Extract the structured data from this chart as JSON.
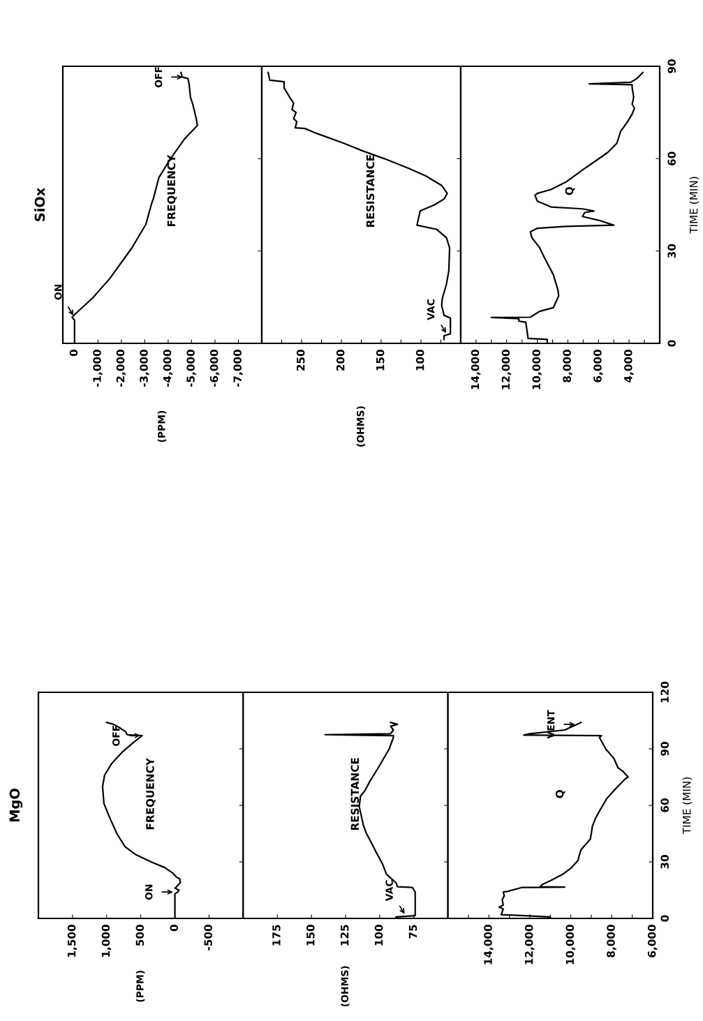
{
  "chart_data": [
    {
      "type": "line",
      "title": "MgO",
      "ylim": [
        0,
        120
      ],
      "yticks": [
        0,
        30,
        60,
        90,
        120
      ],
      "xlim": [
        2000,
        -1000
      ],
      "xticks": [
        {
          "value": 1500,
          "label": "1,500"
        },
        {
          "value": 1000,
          "label": "1,000"
        },
        500,
        0,
        -500
      ],
      "tick_labels": "x",
      "grid": false,
      "annotations": [
        "FREQUENCY",
        "(PPM)",
        {
          "text": "ON",
          "y": 14,
          "x": 0
        },
        {
          "text": "OFF",
          "y": 97,
          "x": 480
        }
      ],
      "series": [
        {
          "color": "#000000",
          "values": [
            0,
            13,
            14,
            15,
            16,
            17,
            19,
            21,
            22,
            24,
            27,
            30,
            34,
            38,
            45,
            53,
            61,
            70,
            76,
            82,
            88,
            93,
            97,
            97.5,
            99,
            101,
            103,
            104
          ],
          "x": [
            0,
            0,
            -40,
            -60,
            0,
            -30,
            -80,
            -70,
            -20,
            30,
            150,
            350,
            580,
            730,
            850,
            950,
            1040,
            1060,
            1030,
            930,
            780,
            620,
            480,
            700,
            720,
            800,
            900,
            1000
          ]
        }
      ]
    },
    {
      "type": "line",
      "ylim": [
        0,
        120
      ],
      "yticks": [
        0,
        30,
        60,
        90,
        120
      ],
      "xlim": [
        200,
        50
      ],
      "xticks": [
        175,
        150,
        125,
        100,
        75
      ],
      "tick_labels": "x",
      "grid": false,
      "annotations": [
        "RESISTANCE",
        "(OHMS)",
        {
          "text": "VAC",
          "y": 1.5,
          "x": 81
        }
      ],
      "series": [
        {
          "color": "#000000",
          "values": [
            0,
            0.8,
            1.4,
            14,
            16.4,
            16.8,
            18.9,
            23.4,
            29,
            35.7,
            41.4,
            45.5,
            49.6,
            59.4,
            65,
            67.6,
            73,
            80,
            85,
            90,
            96,
            97,
            97.5,
            98,
            100,
            102,
            103,
            104
          ],
          "x": [
            88,
            88,
            74,
            74,
            76,
            87,
            88,
            95,
            98,
            103,
            107,
            110,
            112,
            115,
            114,
            111,
            107,
            101,
            97,
            93,
            90,
            90,
            140,
            92,
            90,
            92,
            87,
            92
          ]
        }
      ]
    },
    {
      "type": "line",
      "ylabel": "TIME (MIN)",
      "ylim": [
        0,
        120
      ],
      "yticks": [
        0,
        30,
        60,
        90,
        120
      ],
      "xlim": [
        16000,
        6000
      ],
      "xticks": [
        {
          "value": 15000,
          "label": null
        },
        {
          "value": 14000,
          "label": "14,000"
        },
        {
          "value": 13000,
          "label": null
        },
        {
          "value": 12000,
          "label": "12,000"
        },
        {
          "value": 11000,
          "label": null
        },
        {
          "value": 10000,
          "label": "10,000"
        },
        {
          "value": 9000,
          "label": null
        },
        {
          "value": 8000,
          "label": "8,000"
        },
        {
          "value": 7000,
          "label": null
        },
        {
          "value": 6000,
          "label": "6,000"
        }
      ],
      "grid": false,
      "annotations": [
        "Q",
        {
          "text": "VENT",
          "y": 103,
          "x": 9700
        }
      ],
      "series": [
        {
          "color": "#000000",
          "values": [
            0,
            0.8,
            2,
            5,
            6,
            7,
            10,
            12,
            14,
            14.3,
            16.4,
            16.6,
            16.8,
            18,
            20,
            23.4,
            26.6,
            30.7,
            33,
            36.5,
            39,
            42,
            45,
            48.8,
            53,
            57,
            63.5,
            69,
            74,
            75,
            78,
            80,
            85,
            90,
            96,
            97,
            97.3,
            98,
            100,
            103,
            104
          ],
          "x": [
            11000,
            11000,
            13400,
            13300,
            13500,
            13300,
            13350,
            13250,
            13300,
            13100,
            12400,
            10300,
            11500,
            11400,
            11000,
            10400,
            10000,
            9650,
            9600,
            9500,
            9300,
            9050,
            9000,
            8950,
            8800,
            8600,
            8250,
            7800,
            7350,
            7200,
            7450,
            7700,
            7900,
            8300,
            8600,
            8500,
            12300,
            12000,
            10300,
            9700,
            9500
          ]
        }
      ]
    },
    {
      "type": "line",
      "title": "SiOx",
      "ylim": [
        0,
        90
      ],
      "yticks": [
        0,
        30,
        60,
        90
      ],
      "xlim": [
        500,
        -8000
      ],
      "xticks": [
        0,
        {
          "value": -1000,
          "label": "-1,000"
        },
        {
          "value": -2000,
          "label": "-2,000"
        },
        {
          "value": -3000,
          "label": "-3,000"
        },
        {
          "value": -4000,
          "label": "-4,000"
        },
        {
          "value": -5000,
          "label": "-5,000"
        },
        {
          "value": -6000,
          "label": "-6,000"
        },
        {
          "value": -7000,
          "label": "-7,000"
        }
      ],
      "tick_labels": "x",
      "grid": false,
      "annotations": [
        "FREQUENCY",
        "(PPM)",
        {
          "text": "ON",
          "y": 8.5,
          "x": 0
        },
        {
          "text": "OFF",
          "y": 86.5,
          "x": -4700
        }
      ],
      "series": [
        {
          "color": "#000000",
          "values": [
            0,
            7.5,
            8.5,
            9.7,
            14.8,
            21,
            31,
            38.7,
            45.6,
            47,
            53.8,
            60,
            66.4,
            70.8,
            73,
            77.7,
            80,
            84,
            86,
            86.5,
            88
          ],
          "x": [
            0,
            0,
            100,
            -50,
            -780,
            -1500,
            -2450,
            -3050,
            -3300,
            -3370,
            -3600,
            -4100,
            -4700,
            -5250,
            -5200,
            -5050,
            -4950,
            -4900,
            -4850,
            -4600,
            -4550
          ]
        }
      ]
    },
    {
      "type": "line",
      "ylim": [
        0,
        90
      ],
      "yticks": [
        0,
        30,
        60,
        90
      ],
      "xlim": [
        300,
        50
      ],
      "xticks": [
        {
          "value": 275,
          "label": null
        },
        250,
        {
          "value": 225,
          "label": null
        },
        200,
        {
          "value": 175,
          "label": null
        },
        150,
        {
          "value": 125,
          "label": null
        },
        100,
        {
          "value": 75,
          "label": null
        }
      ],
      "tick_labels": "x",
      "grid": false,
      "annotations": [
        "RESISTANCE",
        "(OHMS)",
        {
          "text": "VAC",
          "y": 2.8,
          "x": 67
        }
      ],
      "series": [
        {
          "color": "#000000",
          "values": [
            1.3,
            2.5,
            3.1,
            8.2,
            9.1,
            12.3,
            14.8,
            19.2,
            23.6,
            31,
            34.3,
            37,
            38.4,
            43,
            45,
            46.9,
            48.7,
            51.3,
            54.4,
            57,
            60,
            62.6,
            65,
            68.2,
            69.8,
            70,
            72,
            73,
            75,
            76,
            78,
            80,
            83,
            85,
            85.5,
            88
          ],
          "x": [
            71,
            71,
            63,
            63,
            71,
            74,
            73,
            68,
            65,
            64,
            68,
            80,
            105,
            101,
            83,
            71,
            67,
            74,
            94,
            117,
            146,
            174,
            197,
            231,
            246,
            258,
            256,
            260,
            257,
            262,
            260,
            265,
            272,
            272,
            290,
            292
          ]
        }
      ]
    },
    {
      "type": "line",
      "ylabel": "TIME (MIN)",
      "ylim": [
        0,
        90
      ],
      "yticks": [
        0,
        30,
        60,
        90
      ],
      "xlim": [
        15000,
        2000
      ],
      "xticks": [
        {
          "value": 14000,
          "label": "14,000"
        },
        {
          "value": 13000,
          "label": null
        },
        {
          "value": 12000,
          "label": "12,000"
        },
        {
          "value": 11000,
          "label": null
        },
        {
          "value": 10000,
          "label": "10,000"
        },
        {
          "value": 9000,
          "label": null
        },
        {
          "value": 8000,
          "label": "8,000"
        },
        {
          "value": 7000,
          "label": null
        },
        {
          "value": 6000,
          "label": "6,000"
        },
        {
          "value": 5000,
          "label": null
        },
        {
          "value": 4000,
          "label": "4,000"
        },
        {
          "value": 3000,
          "label": null
        }
      ],
      "grid": false,
      "annotations": [
        "Q"
      ],
      "series": [
        {
          "color": "#000000",
          "values": [
            0,
            1.3,
            1.6,
            6.9,
            7.2,
            8,
            8.2,
            8.4,
            8.5,
            10.4,
            11.6,
            15.4,
            17.3,
            22.3,
            28,
            31.1,
            34.3,
            36.2,
            37.4,
            38,
            38.4,
            40,
            41.2,
            42.5,
            43,
            43.7,
            44.3,
            46.2,
            48.1,
            48.7,
            50,
            52.5,
            56.3,
            59.4,
            62,
            65,
            68.9,
            72,
            74.5,
            76.4,
            77.7,
            80,
            83,
            84,
            84.3,
            84.8,
            86,
            87,
            88
          ],
          "x": [
            9350,
            9350,
            10600,
            10750,
            11200,
            11200,
            11900,
            13000,
            10450,
            9850,
            8950,
            8600,
            8650,
            8950,
            9550,
            9850,
            10350,
            10450,
            10000,
            8100,
            5000,
            6000,
            7050,
            6900,
            6300,
            7050,
            9100,
            10000,
            10150,
            10000,
            9100,
            8100,
            7050,
            6150,
            5400,
            4800,
            4550,
            4100,
            3800,
            3650,
            3800,
            3700,
            3800,
            3800,
            6600,
            3900,
            3500,
            3300,
            3100
          ]
        }
      ]
    }
  ]
}
